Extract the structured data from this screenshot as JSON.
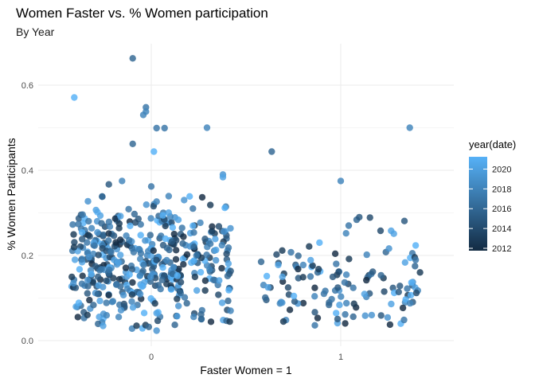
{
  "chart_data": {
    "type": "scatter",
    "title": "Women Faster vs. % Women participation",
    "subtitle": "By Year",
    "xlabel": "Faster Women = 1",
    "ylabel": "% Women Participants",
    "x_categories": [
      "0",
      "1"
    ],
    "y_ticks": [
      0.0,
      0.2,
      0.4,
      0.6
    ],
    "y_tick_labels": [
      "0.0",
      "0.2",
      "0.4",
      "0.6"
    ],
    "ylim": [
      -0.01,
      0.7
    ],
    "jitter_width": 0.3,
    "grid": true,
    "legend": {
      "title": "year(date)",
      "position": "right",
      "min": 2012,
      "max": 2021,
      "ticks": [
        2012,
        2014,
        2016,
        2018,
        2020
      ],
      "color_low": "#132B43",
      "color_high": "#56B1F7"
    },
    "points": [
      {
        "x": 0,
        "jitter": -0.07,
        "y": 0.663,
        "year": 2016
      },
      {
        "x": 0,
        "jitter": -0.29,
        "y": 0.571,
        "year": 2021
      },
      {
        "x": 0,
        "jitter": -0.02,
        "y": 0.548,
        "year": 2017
      },
      {
        "x": 0,
        "jitter": -0.02,
        "y": 0.538,
        "year": 2018
      },
      {
        "x": 0,
        "jitter": -0.03,
        "y": 0.53,
        "year": 2018
      },
      {
        "x": 0,
        "jitter": 0.02,
        "y": 0.499,
        "year": 2017
      },
      {
        "x": 0,
        "jitter": 0.05,
        "y": 0.499,
        "year": 2017
      },
      {
        "x": 0,
        "jitter": 0.21,
        "y": 0.5,
        "year": 2018
      },
      {
        "x": 0,
        "jitter": -0.07,
        "y": 0.462,
        "year": 2016
      },
      {
        "x": 0,
        "jitter": 0.01,
        "y": 0.444,
        "year": 2021
      },
      {
        "x": 0,
        "jitter": 0.27,
        "y": 0.39,
        "year": 2019
      },
      {
        "x": 0,
        "jitter": 0.27,
        "y": 0.384,
        "year": 2020
      },
      {
        "x": 0,
        "jitter": -0.11,
        "y": 0.375,
        "year": 2018
      },
      {
        "x": 0,
        "jitter": -0.16,
        "y": 0.367,
        "year": 2015
      },
      {
        "x": 0,
        "jitter": 0.0,
        "y": 0.362,
        "year": 2017
      },
      {
        "x": 1,
        "jitter": -0.26,
        "y": 0.444,
        "year": 2016
      },
      {
        "x": 1,
        "jitter": 0.26,
        "y": 0.5,
        "year": 2018
      },
      {
        "x": 1,
        "jitter": 0.0,
        "y": 0.375,
        "year": 2018
      },
      {
        "x": 1,
        "jitter": 0.06,
        "y": 0.284,
        "year": 2016
      },
      {
        "x": 1,
        "jitter": 0.07,
        "y": 0.29,
        "year": 2015
      },
      {
        "x": 1,
        "jitter": 0.11,
        "y": 0.289,
        "year": 2014
      },
      {
        "x": 1,
        "jitter": 0.24,
        "y": 0.281,
        "year": 2015
      },
      {
        "x": 1,
        "jitter": 0.03,
        "y": 0.27,
        "year": 2017
      },
      {
        "x": 1,
        "jitter": 0.15,
        "y": 0.258,
        "year": 2014
      },
      {
        "x": 1,
        "jitter": 0.19,
        "y": 0.258,
        "year": 2020
      },
      {
        "x": 1,
        "jitter": 0.2,
        "y": 0.251,
        "year": 2020
      },
      {
        "x": 1,
        "jitter": 0.02,
        "y": 0.252,
        "year": 2018
      },
      {
        "x": 1,
        "jitter": -0.08,
        "y": 0.23,
        "year": 2021
      },
      {
        "x": 1,
        "jitter": -0.16,
        "y": 0.199,
        "year": 2016
      },
      {
        "x": 1,
        "jitter": 0.27,
        "y": 0.205,
        "year": 2017
      },
      {
        "x": 1,
        "jitter": 0.28,
        "y": 0.175,
        "year": 2016
      },
      {
        "x": 1,
        "jitter": -0.17,
        "y": 0.178,
        "year": 2015
      },
      {
        "x": 1,
        "jitter": -0.3,
        "y": 0.185,
        "year": 2016
      }
    ]
  }
}
